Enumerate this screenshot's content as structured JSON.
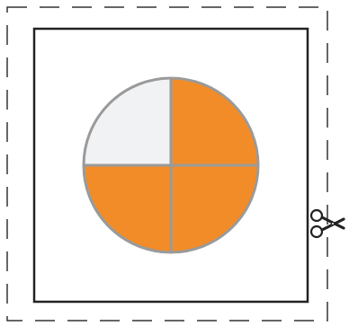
{
  "figure": {
    "description_visible_only": true,
    "pie": {
      "total_parts": 4,
      "shaded_parts": 3,
      "unshaded_parts": 1,
      "shaded_color": "#F28C28",
      "unshaded_color": "#F1F2F4",
      "divider_color": "#9A9A9A"
    },
    "colors": {
      "cut_line": "#333333",
      "card_border": "#222222",
      "scissors": "#222222"
    },
    "icons": {
      "scissors": "scissors-icon"
    }
  }
}
